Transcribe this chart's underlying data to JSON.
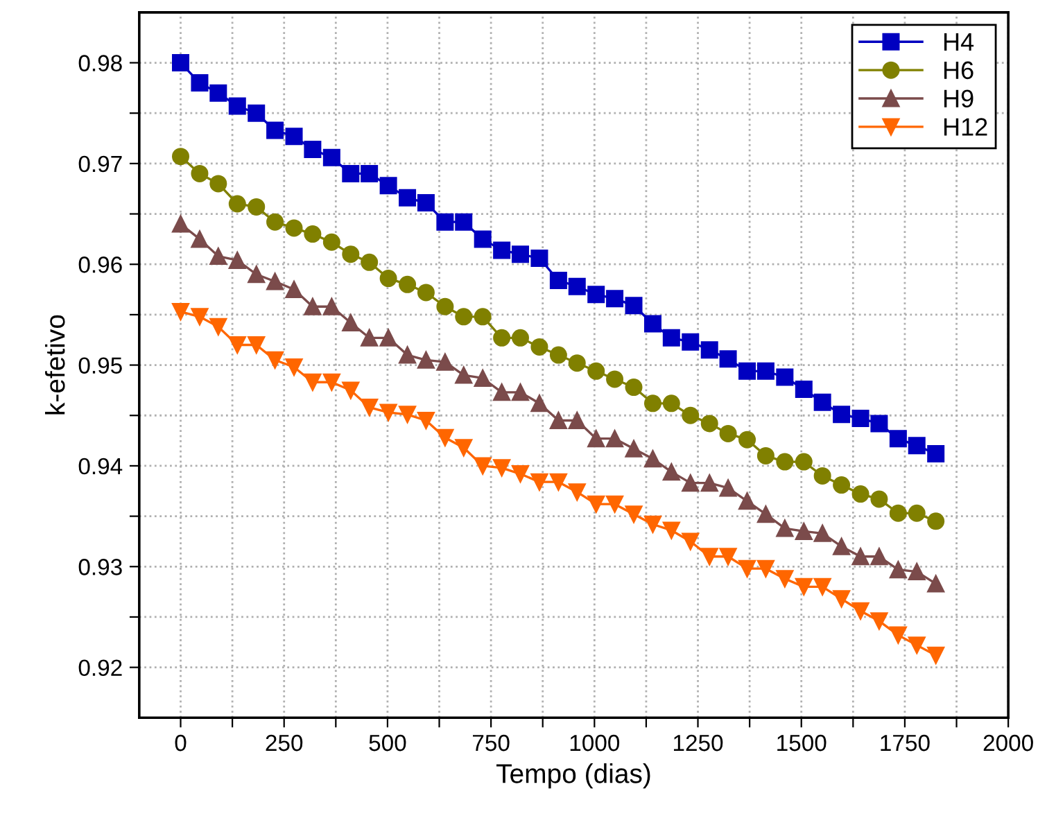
{
  "chart_data": {
    "type": "line",
    "xlabel": "Tempo (dias)",
    "ylabel": "k-efetivo",
    "x": [
      0,
      46,
      91,
      137,
      183,
      228,
      274,
      319,
      365,
      411,
      456,
      502,
      548,
      593,
      639,
      684,
      730,
      776,
      821,
      867,
      913,
      958,
      1004,
      1049,
      1095,
      1141,
      1186,
      1232,
      1278,
      1323,
      1369,
      1414,
      1460,
      1506,
      1551,
      1597,
      1643,
      1688,
      1734,
      1779,
      1825
    ],
    "series": [
      {
        "name": "H4",
        "color": "#0000c0",
        "marker": "square",
        "values": [
          0.98,
          0.978,
          0.977,
          0.9757,
          0.975,
          0.9733,
          0.9727,
          0.9714,
          0.9706,
          0.969,
          0.969,
          0.9678,
          0.9666,
          0.9661,
          0.9642,
          0.9642,
          0.9625,
          0.9614,
          0.961,
          0.9606,
          0.9584,
          0.9578,
          0.957,
          0.9566,
          0.9559,
          0.9541,
          0.9527,
          0.9523,
          0.9515,
          0.9506,
          0.9494,
          0.9494,
          0.9488,
          0.9476,
          0.9463,
          0.9451,
          0.9447,
          0.9442,
          0.9427,
          0.942,
          0.9412
        ]
      },
      {
        "name": "H6",
        "color": "#808000",
        "marker": "circle",
        "values": [
          0.9707,
          0.969,
          0.968,
          0.966,
          0.9657,
          0.9642,
          0.9636,
          0.963,
          0.9622,
          0.961,
          0.9602,
          0.9586,
          0.958,
          0.9572,
          0.9558,
          0.9548,
          0.9548,
          0.9527,
          0.9527,
          0.9518,
          0.951,
          0.9502,
          0.9494,
          0.9486,
          0.9478,
          0.9462,
          0.9462,
          0.945,
          0.9442,
          0.9432,
          0.9426,
          0.941,
          0.9404,
          0.9404,
          0.939,
          0.9381,
          0.9372,
          0.9367,
          0.9353,
          0.9353,
          0.9345
        ]
      },
      {
        "name": "H9",
        "color": "#7b4b4b",
        "marker": "triangle",
        "values": [
          0.964,
          0.9625,
          0.9608,
          0.9604,
          0.959,
          0.9583,
          0.9575,
          0.9558,
          0.9558,
          0.9542,
          0.9527,
          0.9527,
          0.951,
          0.9505,
          0.9503,
          0.949,
          0.9487,
          0.9473,
          0.9473,
          0.9462,
          0.9445,
          0.9445,
          0.9427,
          0.9427,
          0.9417,
          0.9407,
          0.9394,
          0.9383,
          0.9383,
          0.9378,
          0.9365,
          0.9352,
          0.9338,
          0.9335,
          0.9333,
          0.932,
          0.931,
          0.931,
          0.9297,
          0.9295,
          0.9283
        ]
      },
      {
        "name": "H12",
        "color": "#ff6600",
        "marker": "triangle_down",
        "values": [
          0.9553,
          0.9548,
          0.9538,
          0.952,
          0.952,
          0.9505,
          0.9498,
          0.9483,
          0.9483,
          0.9475,
          0.9458,
          0.9453,
          0.9451,
          0.9445,
          0.9428,
          0.9418,
          0.94,
          0.9398,
          0.9392,
          0.9384,
          0.9384,
          0.9374,
          0.9362,
          0.9362,
          0.9352,
          0.9342,
          0.9336,
          0.9325,
          0.931,
          0.931,
          0.9298,
          0.9298,
          0.9288,
          0.928,
          0.928,
          0.9268,
          0.9256,
          0.9246,
          0.9232,
          0.9222,
          0.9212
        ]
      }
    ],
    "xlim": [
      -100,
      2000
    ],
    "xticks": [
      0,
      {
        "value": 125,
        "label": null
      },
      250,
      {
        "value": 375,
        "label": null
      },
      500,
      {
        "value": 625,
        "label": null
      },
      750,
      {
        "value": 875,
        "label": null
      },
      1000,
      {
        "value": 1125,
        "label": null
      },
      1250,
      {
        "value": 1375,
        "label": null
      },
      1500,
      {
        "value": 1625,
        "label": null
      },
      1750,
      {
        "value": 1875,
        "label": null
      },
      2000
    ],
    "ylim": [
      0.915,
      0.985
    ],
    "yticks": [
      {
        "value": 0.92,
        "label": "0.92"
      },
      {
        "value": 0.925,
        "label": null
      },
      {
        "value": 0.93,
        "label": "0.93"
      },
      {
        "value": 0.935,
        "label": null
      },
      {
        "value": 0.94,
        "label": "0.94"
      },
      {
        "value": 0.945,
        "label": null
      },
      {
        "value": 0.95,
        "label": "0.95"
      },
      {
        "value": 0.955,
        "label": null
      },
      {
        "value": 0.96,
        "label": "0.96"
      },
      {
        "value": 0.965,
        "label": null
      },
      {
        "value": 0.97,
        "label": "0.97"
      },
      {
        "value": 0.975,
        "label": null
      },
      {
        "value": 0.98,
        "label": "0.98"
      }
    ],
    "grid": true,
    "legend": "top right",
    "line_style": "solid"
  }
}
